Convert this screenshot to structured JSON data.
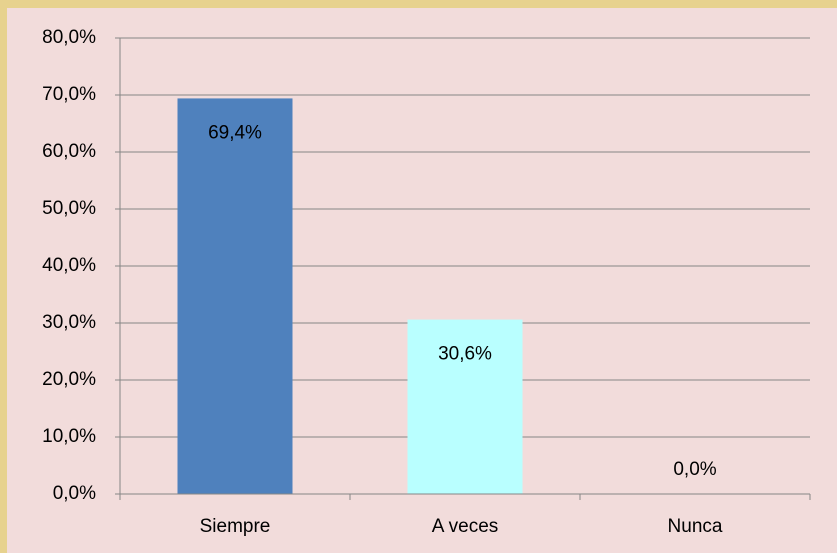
{
  "chart_data": {
    "type": "bar",
    "categories": [
      "Siempre",
      "A veces",
      "Nunca"
    ],
    "values": [
      69.4,
      30.6,
      0
    ],
    "value_labels": [
      "69,4%",
      "30,6%",
      "0,0%"
    ],
    "colors": [
      "#4f81bd",
      "#b9ffff",
      "#9bbb59"
    ],
    "ylim": [
      0,
      80
    ],
    "yticks": [
      {
        "value": 0,
        "label": "0,0%"
      },
      {
        "value": 10,
        "label": "10,0%"
      },
      {
        "value": 20,
        "label": "20,0%"
      },
      {
        "value": 30,
        "label": "30,0%"
      },
      {
        "value": 40,
        "label": "40,0%"
      },
      {
        "value": 50,
        "label": "50,0%"
      },
      {
        "value": 60,
        "label": "60,0%"
      },
      {
        "value": 70,
        "label": "70,0%"
      },
      {
        "value": 80,
        "label": "80,0%"
      }
    ],
    "grid": true
  }
}
